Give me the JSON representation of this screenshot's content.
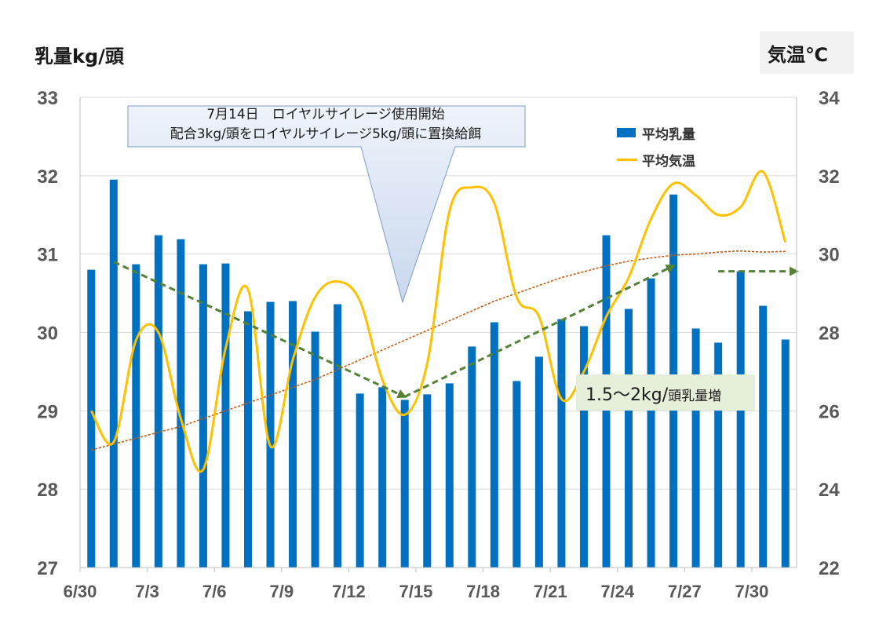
{
  "labels": {
    "left_axis_title": "乳量kg/頭",
    "right_axis_title": "気温℃",
    "callout_line1": "7月14日　ロイヤルサイレージ使用開始",
    "callout_line2": "配合3kg/頭をロイヤルサイレージ5kg/頭に置換給餌",
    "increase_main": "1.5～2kg/",
    "increase_sub": "頭乳量増"
  },
  "chart_data": {
    "type": "bar",
    "x_tick_labels": [
      "6/30",
      "7/3",
      "7/6",
      "7/9",
      "7/12",
      "7/15",
      "7/18",
      "7/21",
      "7/24",
      "7/27",
      "7/30"
    ],
    "categories": [
      "6/30",
      "7/1",
      "7/2",
      "7/3",
      "7/4",
      "7/5",
      "7/6",
      "7/7",
      "7/8",
      "7/9",
      "7/10",
      "7/11",
      "7/12",
      "7/13",
      "7/14",
      "7/15",
      "7/16",
      "7/17",
      "7/18",
      "7/19",
      "7/20",
      "7/21",
      "7/22",
      "7/23",
      "7/24",
      "7/25",
      "7/26",
      "7/27",
      "7/28",
      "7/29",
      "7/30",
      "7/31"
    ],
    "y_left": {
      "min": 27,
      "max": 33,
      "ticks": [
        27,
        28,
        29,
        30,
        31,
        32,
        33
      ]
    },
    "y_right": {
      "min": 22,
      "max": 34,
      "ticks": [
        22,
        24,
        26,
        28,
        30,
        32,
        34
      ]
    },
    "series": [
      {
        "name": "平均乳量",
        "type": "bar",
        "axis": "left",
        "color": "#0070c0",
        "values": [
          30.8,
          31.95,
          30.87,
          31.24,
          31.19,
          30.87,
          30.88,
          30.27,
          30.39,
          30.4,
          30.01,
          30.36,
          29.22,
          29.3,
          29.14,
          29.21,
          29.35,
          29.82,
          30.13,
          29.38,
          29.69,
          30.17,
          30.08,
          31.24,
          30.3,
          30.69,
          31.76,
          30.05,
          29.87,
          30.78,
          30.34,
          29.91
        ]
      },
      {
        "name": "平均気温",
        "type": "line",
        "axis": "right",
        "color": "#ffc000",
        "values": [
          26.0,
          25.2,
          27.8,
          28.0,
          25.8,
          24.5,
          27.6,
          29.1,
          25.1,
          27.3,
          28.9,
          29.3,
          28.8,
          26.8,
          25.9,
          27.2,
          31.1,
          31.7,
          31.3,
          28.9,
          28.4,
          26.3,
          27.0,
          28.4,
          29.4,
          30.9,
          31.8,
          31.5,
          31.0,
          31.2,
          32.1,
          30.3
        ]
      }
    ],
    "trend_temperature": {
      "type": "line",
      "axis": "right",
      "color": "#c55a11",
      "style": "dotted",
      "values": [
        25.0,
        25.15,
        25.3,
        25.45,
        25.6,
        25.8,
        26.0,
        26.2,
        26.4,
        26.6,
        26.8,
        27.05,
        27.3,
        27.55,
        27.8,
        28.05,
        28.3,
        28.55,
        28.8,
        29.0,
        29.2,
        29.4,
        29.55,
        29.7,
        29.82,
        29.9,
        29.97,
        30.0,
        30.05,
        30.08,
        30.05,
        30.07
      ]
    },
    "arrows_milk": {
      "color": "#538135",
      "style": "dashed",
      "axis": "left",
      "segments": [
        {
          "from": [
            "7/1",
            30.9
          ],
          "to": [
            "7/14",
            29.18
          ]
        },
        {
          "from": [
            "7/14",
            29.18
          ],
          "to": [
            "7/26",
            30.85
          ]
        },
        {
          "from": [
            "7/28",
            30.78
          ],
          "to": [
            "7/31",
            30.78
          ]
        }
      ]
    },
    "legend": {
      "position": "top-right",
      "entries": [
        "平均乳量",
        "平均気温"
      ]
    },
    "grid": true
  }
}
